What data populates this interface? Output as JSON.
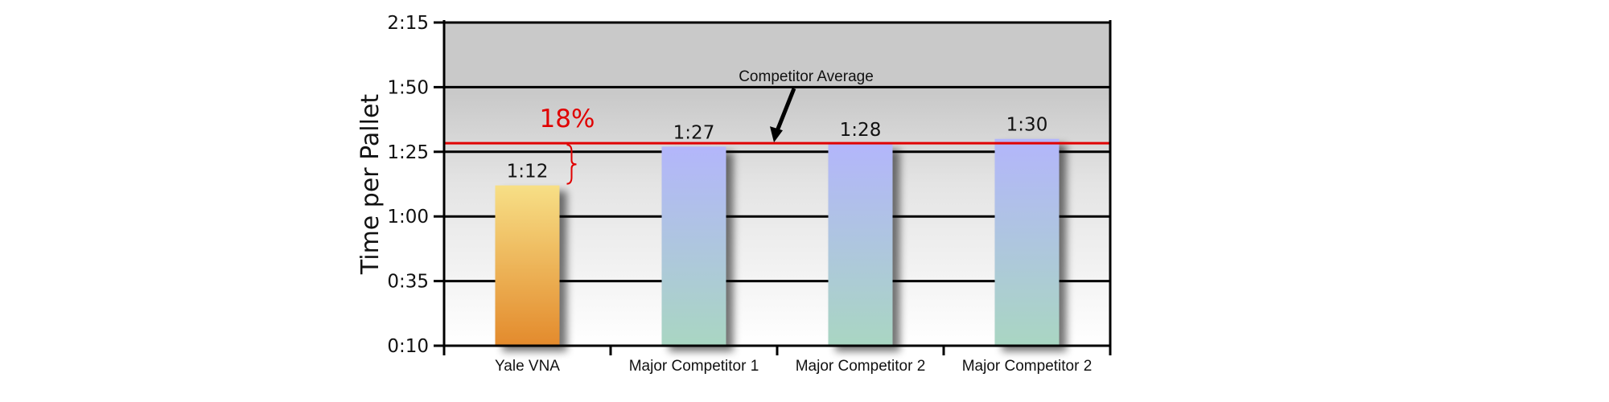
{
  "chart_data": {
    "type": "bar",
    "title": "",
    "xlabel": "",
    "ylabel": "Time per Pallet",
    "categories": [
      "Yale VNA",
      "Major Competitor 1",
      "Major Competitor 2",
      "Major Competitor 2"
    ],
    "values": [
      72,
      87,
      88,
      90
    ],
    "value_labels": [
      "1:12",
      "1:27",
      "1:28",
      "1:30"
    ],
    "yticks": [
      10,
      35,
      60,
      85,
      110,
      135
    ],
    "ytick_labels": [
      "0:10",
      "0:35",
      "1:00",
      "1:25",
      "1:50",
      "2:15"
    ],
    "ylim": [
      10,
      135
    ],
    "grid": true,
    "reference_line": {
      "label": "Competitor Average",
      "value": 88.3,
      "color": "#e00000"
    },
    "annotation": {
      "text": "18%",
      "color": "#e00000"
    },
    "bar_colors": [
      {
        "top": "#f7df86",
        "bottom": "#e38a2c"
      },
      {
        "top": "#b3b6fb",
        "bottom": "#a9d6c2"
      },
      {
        "top": "#b3b6fb",
        "bottom": "#a9d6c2"
      },
      {
        "top": "#b3b6fb",
        "bottom": "#a9d6c2"
      }
    ],
    "background": {
      "top": "#c9c9c9",
      "bottom": "#ffffff"
    }
  }
}
